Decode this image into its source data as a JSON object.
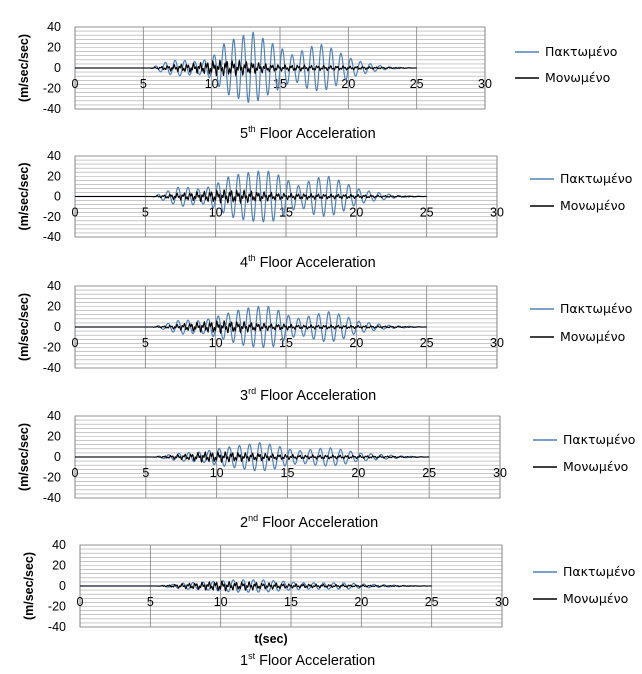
{
  "x_axis_label": "t(sec)",
  "charts": [
    {
      "caption": {
        "num": "5",
        "sup": "th",
        "text": "Floor Acceleration"
      },
      "ylabel": "(m/sec/sec)",
      "legend": [
        "Πακτωμένο",
        "Μονωμένο"
      ],
      "x_ticks": [
        "0",
        "5",
        "10",
        "15",
        "20",
        "25",
        "30"
      ],
      "y_ticks": [
        "40",
        "20",
        "0",
        "-20",
        "-40"
      ]
    },
    {
      "caption": {
        "num": "4",
        "sup": "th",
        "text": "Floor Acceleration"
      },
      "ylabel": "(m/sec/sec)",
      "legend": [
        "Πακτωμένο",
        "Μονωμένο"
      ],
      "x_ticks": [
        "0",
        "5",
        "10",
        "15",
        "20",
        "25",
        "30"
      ],
      "y_ticks": [
        "40",
        "20",
        "0",
        "-20",
        "-40"
      ]
    },
    {
      "caption": {
        "num": "3",
        "sup": "rd",
        "text": "Floor Acceleration"
      },
      "ylabel": "(m/sec/sec)",
      "legend": [
        "Πακτωμένο",
        "Μονωμένο"
      ],
      "x_ticks": [
        "0",
        "5",
        "10",
        "15",
        "20",
        "25",
        "30"
      ],
      "y_ticks": [
        "40",
        "20",
        "0",
        "-20",
        "-40"
      ]
    },
    {
      "caption": {
        "num": "2",
        "sup": "nd",
        "text": "Floor Acceleration"
      },
      "ylabel": "(m/sec/sec)",
      "legend": [
        "Πακτωμένο",
        "Μονωμένο"
      ],
      "x_ticks": [
        "0",
        "5",
        "10",
        "15",
        "20",
        "25",
        "30"
      ],
      "y_ticks": [
        "40",
        "20",
        "0",
        "-20",
        "-40"
      ]
    },
    {
      "caption": {
        "num": "1",
        "sup": "st",
        "text": "Floor Acceleration"
      },
      "ylabel": "(m/sec/sec)",
      "legend": [
        "Πακτωμένο",
        "Μονωμένο"
      ],
      "x_ticks": [
        "0",
        "5",
        "10",
        "15",
        "20",
        "25",
        "30"
      ],
      "y_ticks": [
        "40",
        "20",
        "0",
        "-20",
        "-40"
      ]
    }
  ],
  "colors": {
    "fixed": "#4f81bd",
    "isolated": "#000000",
    "grid": "#a6a6a6",
    "axis": "#808080"
  },
  "chart_data": [
    {
      "type": "line",
      "title": "5th Floor Acceleration",
      "ylabel": "(m/sec/sec)",
      "xlim": [
        0,
        30
      ],
      "ylim": [
        -40,
        40
      ],
      "grid": true,
      "legend_position": "right",
      "series": [
        {
          "name": "Πακτωμένο",
          "envelope": {
            "x": [
              0,
              5.5,
              6.5,
              7.5,
              9,
              10,
              11,
              12,
              13,
              14,
              15,
              16,
              17,
              18,
              19,
              20,
              21,
              22,
              23,
              25
            ],
            "amp": [
              0,
              0,
              5,
              8,
              6,
              10,
              25,
              30,
              35,
              27,
              20,
              12,
              20,
              23,
              18,
              10,
              6,
              3,
              1,
              0
            ]
          }
        },
        {
          "name": "Μονωμένο",
          "envelope": {
            "x": [
              0,
              5.5,
              7,
              8,
              9,
              10,
              11,
              12,
              13,
              14,
              15,
              16,
              18,
              20,
              22,
              25
            ],
            "amp": [
              0,
              0,
              3,
              4,
              5,
              7,
              8,
              7,
              6,
              4,
              3,
              3,
              2.5,
              2,
              1,
              0
            ]
          }
        }
      ]
    },
    {
      "type": "line",
      "title": "4th Floor Acceleration",
      "ylabel": "(m/sec/sec)",
      "xlim": [
        0,
        30
      ],
      "ylim": [
        -40,
        40
      ],
      "grid": true,
      "legend_position": "right",
      "series": [
        {
          "name": "Πακτωμένο",
          "envelope": {
            "x": [
              0,
              5.5,
              6.5,
              7.5,
              9,
              10,
              11,
              12,
              13,
              14,
              15,
              16,
              17,
              18,
              19,
              20,
              21,
              22,
              23,
              25
            ],
            "amp": [
              0,
              0,
              5,
              10,
              7,
              12,
              20,
              23,
              25,
              25,
              17,
              10,
              18,
              20,
              15,
              8,
              5,
              3,
              1,
              0
            ]
          }
        },
        {
          "name": "Μονωμένο",
          "envelope": {
            "x": [
              0,
              5.5,
              7,
              8,
              9,
              10,
              11,
              12,
              13,
              14,
              15,
              16,
              18,
              20,
              22,
              25
            ],
            "amp": [
              0,
              0,
              3,
              4,
              5,
              6,
              7,
              6,
              5,
              4,
              3,
              3,
              2.5,
              2,
              1,
              0
            ]
          }
        }
      ]
    },
    {
      "type": "line",
      "title": "3rd Floor Acceleration",
      "ylabel": "(m/sec/sec)",
      "xlim": [
        0,
        30
      ],
      "ylim": [
        -40,
        40
      ],
      "grid": true,
      "legend_position": "right",
      "series": [
        {
          "name": "Πακτωμένο",
          "envelope": {
            "x": [
              0,
              5.5,
              6.5,
              7.5,
              9,
              10,
              11,
              12,
              13,
              14,
              15,
              16,
              17,
              18,
              19,
              20,
              21,
              22,
              23,
              25
            ],
            "amp": [
              0,
              0,
              3,
              7,
              6,
              10,
              14,
              18,
              20,
              20,
              12,
              8,
              12,
              15,
              12,
              6,
              4,
              2,
              1,
              0
            ]
          }
        },
        {
          "name": "Μονωμένο",
          "envelope": {
            "x": [
              0,
              5.5,
              7,
              8,
              9,
              10,
              11,
              12,
              13,
              14,
              15,
              16,
              18,
              20,
              22,
              25
            ],
            "amp": [
              0,
              0,
              2,
              4,
              5,
              6,
              6,
              5,
              4,
              3,
              3,
              2,
              2,
              1.5,
              1,
              0
            ]
          }
        }
      ]
    },
    {
      "type": "line",
      "title": "2nd Floor Acceleration",
      "ylabel": "(m/sec/sec)",
      "xlim": [
        0,
        30
      ],
      "ylim": [
        -40,
        40
      ],
      "grid": true,
      "legend_position": "right",
      "series": [
        {
          "name": "Πακτωμένο",
          "envelope": {
            "x": [
              0,
              5.5,
              6.5,
              7.5,
              9,
              10,
              11,
              12,
              13,
              14,
              15,
              16,
              17,
              18,
              19,
              20,
              21,
              22,
              23,
              25
            ],
            "amp": [
              0,
              0,
              2,
              4,
              5,
              8,
              10,
              12,
              14,
              12,
              8,
              6,
              8,
              9,
              7,
              4,
              3,
              2,
              1,
              0
            ]
          }
        },
        {
          "name": "Μονωμένο",
          "envelope": {
            "x": [
              0,
              5.5,
              7,
              8,
              9,
              10,
              11,
              12,
              13,
              14,
              15,
              16,
              18,
              20,
              22,
              25
            ],
            "amp": [
              0,
              0,
              2,
              3,
              5,
              5,
              5,
              4,
              4,
              3,
              2.5,
              2,
              2,
              1.5,
              1,
              0
            ]
          }
        }
      ]
    },
    {
      "type": "line",
      "title": "1st Floor Acceleration",
      "ylabel": "(m/sec/sec)",
      "xlabel": "t(sec)",
      "xlim": [
        0,
        30
      ],
      "ylim": [
        -40,
        40
      ],
      "grid": true,
      "legend_position": "right",
      "series": [
        {
          "name": "Πακτωμένο",
          "envelope": {
            "x": [
              0,
              5.5,
              6.5,
              7.5,
              9,
              10,
              11,
              12,
              13,
              14,
              15,
              16,
              17,
              18,
              19,
              20,
              21,
              22,
              23,
              25
            ],
            "amp": [
              0,
              0,
              1.5,
              3,
              4,
              5,
              6,
              6,
              6,
              5,
              4,
              3,
              3,
              3,
              3,
              2,
              1.5,
              1,
              0.5,
              0
            ]
          }
        },
        {
          "name": "Μονωμένο",
          "envelope": {
            "x": [
              0,
              5.5,
              7,
              8,
              9,
              10,
              11,
              12,
              13,
              14,
              15,
              16,
              18,
              20,
              22,
              25
            ],
            "amp": [
              0,
              0,
              2,
              3,
              4,
              5,
              4,
              4,
              3,
              3,
              2,
              2,
              1.5,
              1,
              0.5,
              0
            ]
          }
        }
      ]
    }
  ]
}
